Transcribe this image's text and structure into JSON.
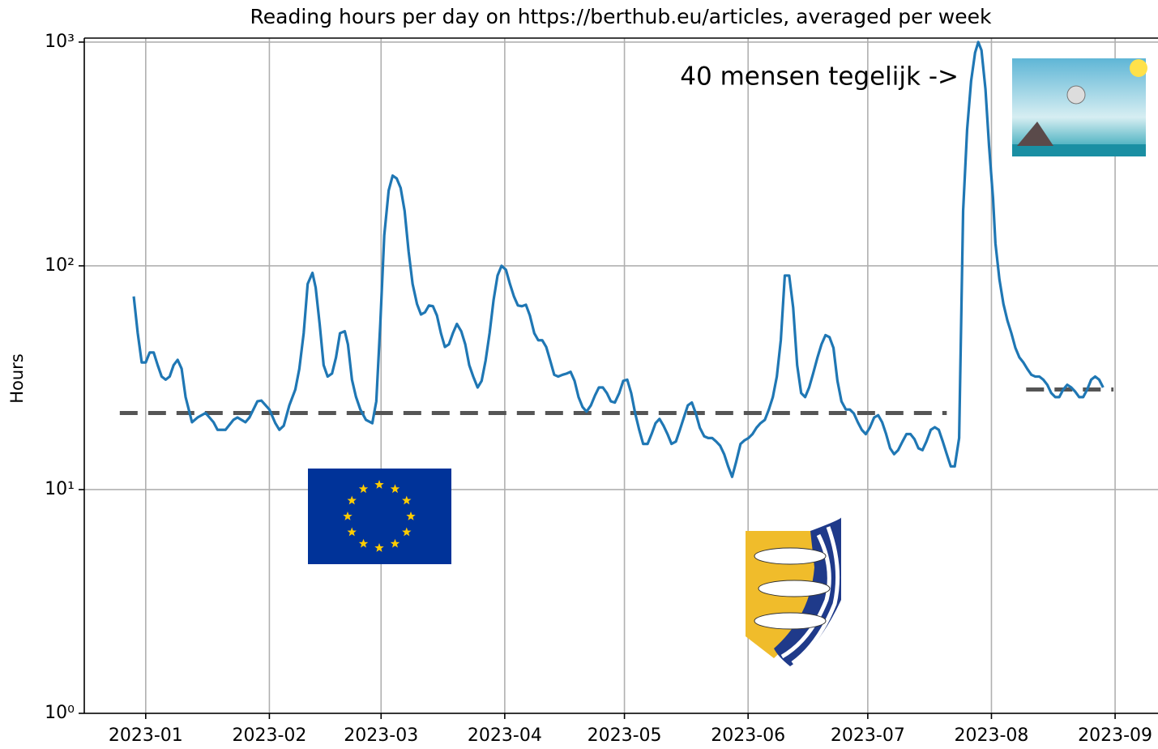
{
  "chart_data": {
    "type": "line",
    "title": "Reading hours per day on https://berthub.eu/articles, averaged per week",
    "y_label": "Hours",
    "log_y": true,
    "grid": true,
    "color": "#1f77b4",
    "x": [
      -3,
      -2,
      -1,
      0,
      1,
      2,
      3,
      4,
      5,
      6,
      7,
      8,
      9,
      10,
      11.6,
      13,
      15,
      17,
      18,
      20,
      22,
      23,
      25,
      26,
      28,
      29,
      31,
      32.5,
      33.5,
      34.6,
      36,
      37.5,
      38.5,
      39.6,
      40.6,
      41.8,
      42.6,
      43.6,
      44.6,
      45.6,
      46.7,
      47.7,
      48.7,
      49.9,
      50.7,
      51.7,
      52.7,
      53.8,
      55.2,
      56.8,
      57.8,
      58.8,
      59.8,
      60.9,
      61.9,
      62.9,
      63.9,
      64.9,
      65.9,
      66.9,
      68,
      69,
      70,
      71,
      72,
      73,
      74,
      75,
      76,
      77,
      78,
      79.1,
      80.1,
      81.1,
      82.1,
      83.2,
      84.2,
      85.2,
      86.2,
      87.2,
      88.2,
      89.2,
      90.3,
      91.3,
      92.3,
      93.3,
      94.3,
      95.3,
      96.3,
      97.4,
      98.4,
      99.4,
      100.4,
      101.4,
      102.4,
      103.4,
      104.5,
      105.5,
      106.5,
      107.5,
      108.5,
      109.5,
      110.5,
      111.6,
      112.6,
      113.6,
      114.6,
      115.6,
      116.6,
      117.6,
      118.7,
      119.7,
      120.7,
      121.7,
      122.7,
      123.7,
      124.7,
      125.8,
      126.8,
      127.8,
      128.8,
      129.8,
      130.8,
      131.8,
      132.9,
      133.9,
      134.9,
      135.9,
      136.9,
      137.9,
      138.9,
      140,
      141,
      142,
      143,
      144,
      145,
      146,
      147,
      148,
      149.1,
      150.1,
      151.1,
      152.1,
      153.1,
      154.1,
      155.2,
      156.2,
      157.2,
      158.2,
      159.2,
      160.2,
      161.3,
      162.3,
      163.3,
      164.3,
      165.3,
      166.3,
      167.3,
      168.4,
      169.4,
      170.4,
      171.4,
      172.4,
      173.4,
      174.4,
      175.5,
      176.5,
      177.5,
      178.5,
      179.5,
      180.5,
      181.5,
      182.6,
      183.6,
      184.6,
      185.6,
      186.6,
      187.6,
      188.6,
      189.7,
      190.7,
      191.7,
      192.7,
      193.7,
      194.7,
      195.7,
      196.8,
      197.8,
      198.8,
      199.8,
      200.8,
      201.8,
      202.8,
      203.9,
      204.9,
      205.9,
      206.9,
      207.9,
      208.7,
      209.5,
      210.5,
      211.4,
      212.4,
      213,
      214,
      215,
      216,
      217,
      218,
      219,
      220,
      221,
      222,
      223,
      224,
      225,
      226,
      227,
      228,
      229,
      230,
      231,
      232,
      233,
      234,
      235,
      236,
      237,
      238,
      239,
      240
    ],
    "values": [
      73,
      50,
      37,
      37,
      41,
      41,
      36,
      32,
      31,
      32,
      36,
      38,
      34.7,
      25.9,
      20,
      21,
      22,
      20,
      18.5,
      18.5,
      20.5,
      21,
      20,
      21,
      24.8,
      25,
      22.8,
      19.8,
      18.5,
      19.3,
      23.8,
      28,
      34.6,
      50,
      83,
      93,
      80,
      55,
      36,
      32,
      33,
      39,
      50,
      51,
      44.5,
      31,
      26,
      22.8,
      20.5,
      19.8,
      24.8,
      55,
      137,
      217,
      253,
      246,
      223,
      176,
      116,
      83,
      67.6,
      60.6,
      62,
      66.5,
      66,
      60,
      50,
      43.4,
      44.6,
      50,
      55,
      51,
      44.6,
      36,
      32,
      28.6,
      30.6,
      37.7,
      50,
      70.4,
      90.5,
      100,
      96,
      83,
      73,
      66.5,
      66,
      67,
      60,
      50,
      46.5,
      46.5,
      43.4,
      37.7,
      32.6,
      32,
      32.6,
      33,
      33.6,
      30.6,
      25.9,
      23.4,
      22.3,
      23.8,
      26.3,
      28.6,
      28.6,
      27,
      24.8,
      24.5,
      27,
      30.6,
      31,
      27,
      21.9,
      18.5,
      16,
      16,
      17.7,
      19.8,
      20.7,
      19.3,
      17.7,
      16,
      16.4,
      18.5,
      21,
      23.8,
      24.5,
      21.9,
      18.9,
      17.3,
      17,
      17,
      16.4,
      15.7,
      14.4,
      12.7,
      11.4,
      13.3,
      16,
      16.6,
      17,
      17.7,
      18.9,
      19.8,
      20.5,
      22.8,
      25.9,
      32,
      46.5,
      90.5,
      90.5,
      65,
      36,
      27,
      25.9,
      28.6,
      33,
      39,
      44.6,
      49,
      48,
      43,
      30.6,
      24.8,
      22.8,
      22.8,
      21.9,
      20,
      18.5,
      17.7,
      18.9,
      21,
      21.5,
      20,
      17.7,
      15.3,
      14.4,
      15,
      16.4,
      17.7,
      17.7,
      16.8,
      15.3,
      15,
      16.4,
      18.5,
      19,
      18.5,
      16.4,
      14.4,
      12.7,
      12.7,
      17,
      176,
      406,
      670,
      897,
      1000,
      920,
      617,
      344,
      200,
      126,
      87,
      67.6,
      57,
      50,
      43,
      39,
      37,
      34.6,
      32.6,
      32,
      32,
      31,
      29.4,
      27,
      25.9,
      25.9,
      28,
      29.4,
      28.6,
      27.4,
      25.9,
      25.9,
      28,
      31,
      32,
      31,
      28.6
    ],
    "xlim": [
      -15.4,
      253.75
    ],
    "xticks": [
      {
        "value": 0,
        "label": "2023-01"
      },
      {
        "value": 31,
        "label": "2023-02"
      },
      {
        "value": 59,
        "label": "2023-03"
      },
      {
        "value": 90,
        "label": "2023-04"
      },
      {
        "value": 120,
        "label": "2023-05"
      },
      {
        "value": 151,
        "label": "2023-06"
      },
      {
        "value": 181,
        "label": "2023-07"
      },
      {
        "value": 212,
        "label": "2023-08"
      },
      {
        "value": 243,
        "label": "2023-09"
      }
    ],
    "ylim": [
      1,
      1042
    ],
    "yticks": [
      {
        "value": 1,
        "label": "10⁰"
      },
      {
        "value": 10,
        "label": "10¹"
      },
      {
        "value": 100,
        "label": "10²"
      },
      {
        "value": 1000,
        "label": "10³"
      }
    ],
    "reference_lines": [
      {
        "y": 22,
        "x": [
          -6.5,
          200.8
        ]
      },
      {
        "y": 28,
        "x": [
          220.7,
          242.6
        ]
      }
    ],
    "reference_color": "#555555",
    "annotation": {
      "text": "40 mensen tegelijk ->",
      "color": "#ff0000"
    }
  }
}
